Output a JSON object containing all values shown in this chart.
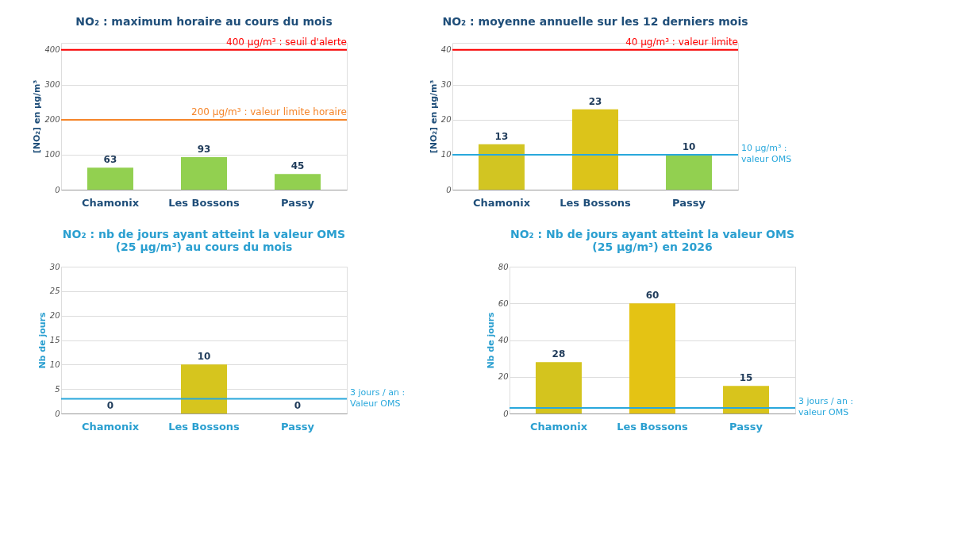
{
  "chart_data": [
    {
      "type": "bar",
      "title": "NO₂ : maximum horaire au cours du mois",
      "ylabel": "[NO₂] en µg/m³",
      "categories": [
        "Chamonix",
        "Les Bossons",
        "Passy"
      ],
      "values": [
        63,
        93,
        45
      ],
      "colors": [
        "#92d050",
        "#92d050",
        "#92d050"
      ],
      "ylim": [
        0,
        420
      ],
      "yticks": [
        0,
        100,
        200,
        300,
        400
      ],
      "grid": "y",
      "data_labels": true,
      "ref_lines": [
        {
          "axis": "y",
          "value": 400,
          "label": "400 µg/m³ : seuil d'alerte",
          "color": "#ff0000"
        },
        {
          "axis": "y",
          "value": 200,
          "label": "200 µg/m³ : valeur limite horaire",
          "color": "#f5852a"
        }
      ]
    },
    {
      "type": "bar",
      "title": "NO₂ : moyenne annuelle sur les 12 derniers mois",
      "ylabel": "[NO₂] en µg/m³",
      "categories": [
        "Chamonix",
        "Les Bossons",
        "Passy"
      ],
      "values": [
        13,
        23,
        10
      ],
      "colors": [
        "#d2c522",
        "#dcc41a",
        "#92d050"
      ],
      "ylim": [
        0,
        42
      ],
      "yticks": [
        0,
        10,
        20,
        30,
        40
      ],
      "grid": "y",
      "data_labels": true,
      "ref_lines": [
        {
          "axis": "y",
          "value": 40,
          "label": "40 µg/m³ : valeur limite",
          "color": "#ff0000"
        },
        {
          "axis": "y",
          "value": 10,
          "label": "10 µg/m³ : valeur OMS",
          "color": "#29a8dc"
        }
      ]
    },
    {
      "type": "bar",
      "title": "NO₂ : nb de jours ayant atteint la valeur OMS (25 µg/m³) au cours du mois",
      "ylabel": "Nb de jours",
      "categories": [
        "Chamonix",
        "Les Bossons",
        "Passy"
      ],
      "values": [
        0,
        10,
        0
      ],
      "colors": [
        "#92d050",
        "#d6c51e",
        "#92d050"
      ],
      "ylim": [
        0,
        30
      ],
      "yticks": [
        0,
        5,
        10,
        15,
        20,
        25,
        30
      ],
      "grid": "y",
      "data_labels": true,
      "ref_lines": [
        {
          "axis": "y",
          "value": 3,
          "label": "3 jours / an : Valeur OMS",
          "color": "#29a8dc"
        }
      ]
    },
    {
      "type": "bar",
      "title": "NO₂ : Nb de jours ayant atteint la valeur OMS (25 µg/m³) en 2026",
      "ylabel": "Nb de jours",
      "categories": [
        "Chamonix",
        "Les Bossons",
        "Passy"
      ],
      "values": [
        28,
        60,
        15
      ],
      "colors": [
        "#d4c41e",
        "#e4c314",
        "#d8c41c"
      ],
      "ylim": [
        0,
        80
      ],
      "yticks": [
        0,
        20,
        40,
        60,
        80
      ],
      "grid": "y",
      "data_labels": true,
      "ref_lines": [
        {
          "axis": "y",
          "value": 3,
          "label": "3 jours / an : valeur OMS",
          "color": "#29a8dc"
        }
      ]
    }
  ]
}
